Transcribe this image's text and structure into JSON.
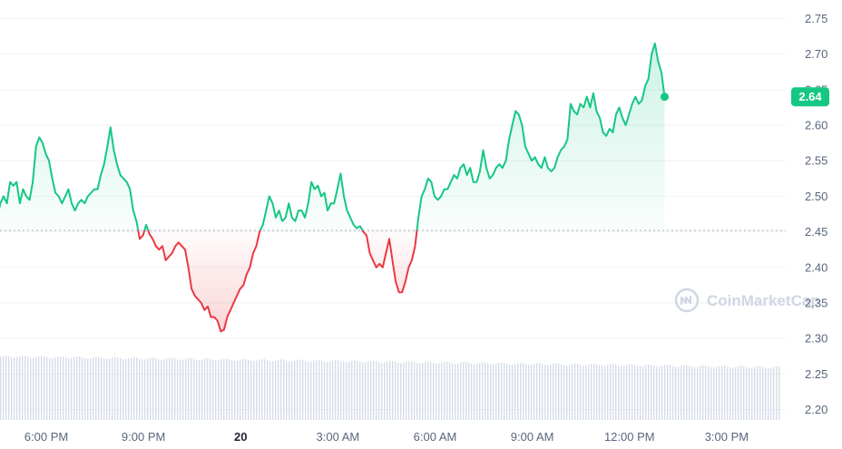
{
  "watermark": "CoinMarketCap",
  "current_price_label": "2.64",
  "colors": {
    "up": "#16c784",
    "down": "#ea3943",
    "grid": "#eff2f5",
    "baseline": "#a1a7bb",
    "volume": "#cfd6e4"
  },
  "chart_data": {
    "type": "line",
    "baseline": 2.452,
    "ylim": [
      2.18,
      2.77
    ],
    "y_ticks": [
      2.75,
      2.7,
      2.65,
      2.6,
      2.55,
      2.5,
      2.45,
      2.4,
      2.35,
      2.3,
      2.25,
      2.2
    ],
    "y_tick_labels": [
      "2.75",
      "2.70",
      "2.65",
      "2.60",
      "2.55",
      "2.50",
      "2.45",
      "2.40",
      "2.35",
      "2.30",
      "2.25",
      "2.20"
    ],
    "x_range_hours": [
      -1,
      22.5
    ],
    "x_ticks": [
      {
        "label": "6:00 PM",
        "hour": 0,
        "bold": false
      },
      {
        "label": "9:00 PM",
        "hour": 3,
        "bold": false
      },
      {
        "label": "20",
        "hour": 6,
        "bold": true
      },
      {
        "label": "3:00 AM",
        "hour": 9,
        "bold": false
      },
      {
        "label": "6:00 AM",
        "hour": 12,
        "bold": false
      },
      {
        "label": "9:00 AM",
        "hour": 15,
        "bold": false
      },
      {
        "label": "12:00 PM",
        "hour": 18,
        "bold": false
      },
      {
        "label": "3:00 PM",
        "hour": 21,
        "bold": false
      }
    ],
    "price_points": [
      [
        -1.0,
        2.452
      ],
      [
        -0.9,
        2.47
      ],
      [
        -0.8,
        2.49
      ],
      [
        -0.7,
        2.5
      ],
      [
        -0.6,
        2.49
      ],
      [
        -0.5,
        2.52
      ],
      [
        -0.4,
        2.515
      ],
      [
        -0.3,
        2.52
      ],
      [
        -0.2,
        2.49
      ],
      [
        -0.1,
        2.51
      ],
      [
        0.0,
        2.5
      ],
      [
        0.1,
        2.495
      ],
      [
        0.2,
        2.52
      ],
      [
        0.3,
        2.57
      ],
      [
        0.4,
        2.583
      ],
      [
        0.5,
        2.575
      ],
      [
        0.6,
        2.56
      ],
      [
        0.7,
        2.55
      ],
      [
        0.8,
        2.525
      ],
      [
        0.9,
        2.505
      ],
      [
        1.0,
        2.5
      ],
      [
        1.1,
        2.49
      ],
      [
        1.2,
        2.5
      ],
      [
        1.3,
        2.51
      ],
      [
        1.4,
        2.49
      ],
      [
        1.5,
        2.48
      ],
      [
        1.6,
        2.49
      ],
      [
        1.7,
        2.495
      ],
      [
        1.8,
        2.49
      ],
      [
        1.9,
        2.5
      ],
      [
        2.0,
        2.505
      ],
      [
        2.1,
        2.51
      ],
      [
        2.2,
        2.51
      ],
      [
        2.3,
        2.53
      ],
      [
        2.4,
        2.545
      ],
      [
        2.5,
        2.57
      ],
      [
        2.6,
        2.597
      ],
      [
        2.7,
        2.565
      ],
      [
        2.8,
        2.545
      ],
      [
        2.9,
        2.53
      ],
      [
        3.0,
        2.525
      ],
      [
        3.1,
        2.52
      ],
      [
        3.2,
        2.51
      ],
      [
        3.3,
        2.48
      ],
      [
        3.4,
        2.465
      ],
      [
        3.5,
        2.44
      ],
      [
        3.6,
        2.445
      ],
      [
        3.7,
        2.46
      ],
      [
        3.8,
        2.447
      ],
      [
        3.9,
        2.44
      ],
      [
        4.0,
        2.43
      ],
      [
        4.1,
        2.425
      ],
      [
        4.2,
        2.43
      ],
      [
        4.3,
        2.41
      ],
      [
        4.4,
        2.415
      ],
      [
        4.5,
        2.42
      ],
      [
        4.6,
        2.43
      ],
      [
        4.7,
        2.435
      ],
      [
        4.8,
        2.43
      ],
      [
        4.9,
        2.425
      ],
      [
        5.0,
        2.4
      ],
      [
        5.1,
        2.37
      ],
      [
        5.2,
        2.36
      ],
      [
        5.3,
        2.355
      ],
      [
        5.4,
        2.35
      ],
      [
        5.5,
        2.34
      ],
      [
        5.6,
        2.345
      ],
      [
        5.7,
        2.33
      ],
      [
        5.8,
        2.33
      ],
      [
        5.9,
        2.325
      ],
      [
        6.0,
        2.31
      ],
      [
        6.1,
        2.312
      ],
      [
        6.2,
        2.33
      ],
      [
        6.3,
        2.34
      ],
      [
        6.4,
        2.35
      ],
      [
        6.5,
        2.36
      ],
      [
        6.6,
        2.37
      ],
      [
        6.7,
        2.375
      ],
      [
        6.8,
        2.39
      ],
      [
        6.9,
        2.4
      ],
      [
        7.0,
        2.42
      ],
      [
        7.1,
        2.43
      ],
      [
        7.2,
        2.45
      ],
      [
        7.3,
        2.46
      ],
      [
        7.4,
        2.48
      ],
      [
        7.5,
        2.5
      ],
      [
        7.6,
        2.49
      ],
      [
        7.7,
        2.47
      ],
      [
        7.8,
        2.48
      ],
      [
        7.9,
        2.465
      ],
      [
        8.0,
        2.47
      ],
      [
        8.1,
        2.49
      ],
      [
        8.2,
        2.47
      ],
      [
        8.3,
        2.465
      ],
      [
        8.4,
        2.48
      ],
      [
        8.5,
        2.48
      ],
      [
        8.6,
        2.47
      ],
      [
        8.7,
        2.49
      ],
      [
        8.8,
        2.52
      ],
      [
        8.9,
        2.51
      ],
      [
        9.0,
        2.515
      ],
      [
        9.1,
        2.5
      ],
      [
        9.2,
        2.505
      ],
      [
        9.3,
        2.48
      ],
      [
        9.4,
        2.49
      ],
      [
        9.5,
        2.49
      ],
      [
        9.6,
        2.51
      ],
      [
        9.7,
        2.532
      ],
      [
        9.8,
        2.5
      ],
      [
        9.9,
        2.48
      ],
      [
        10.0,
        2.47
      ],
      [
        10.1,
        2.46
      ],
      [
        10.2,
        2.455
      ],
      [
        10.3,
        2.458
      ],
      [
        10.4,
        2.45
      ],
      [
        10.5,
        2.445
      ],
      [
        10.6,
        2.42
      ],
      [
        10.7,
        2.41
      ],
      [
        10.8,
        2.4
      ],
      [
        10.9,
        2.405
      ],
      [
        11.0,
        2.4
      ],
      [
        11.1,
        2.42
      ],
      [
        11.2,
        2.44
      ],
      [
        11.3,
        2.41
      ],
      [
        11.4,
        2.38
      ],
      [
        11.5,
        2.365
      ],
      [
        11.6,
        2.365
      ],
      [
        11.7,
        2.38
      ],
      [
        11.8,
        2.4
      ],
      [
        11.9,
        2.41
      ],
      [
        12.0,
        2.43
      ],
      [
        12.1,
        2.47
      ],
      [
        12.2,
        2.5
      ],
      [
        12.3,
        2.51
      ],
      [
        12.4,
        2.525
      ],
      [
        12.5,
        2.52
      ],
      [
        12.6,
        2.5
      ],
      [
        12.7,
        2.495
      ],
      [
        12.8,
        2.5
      ],
      [
        12.9,
        2.51
      ],
      [
        13.0,
        2.51
      ],
      [
        13.1,
        2.52
      ],
      [
        13.2,
        2.53
      ],
      [
        13.3,
        2.525
      ],
      [
        13.4,
        2.54
      ],
      [
        13.5,
        2.545
      ],
      [
        13.6,
        2.53
      ],
      [
        13.7,
        2.54
      ],
      [
        13.8,
        2.52
      ],
      [
        13.9,
        2.52
      ],
      [
        14.0,
        2.535
      ],
      [
        14.1,
        2.565
      ],
      [
        14.2,
        2.54
      ],
      [
        14.3,
        2.525
      ],
      [
        14.4,
        2.53
      ],
      [
        14.5,
        2.54
      ],
      [
        14.6,
        2.545
      ],
      [
        14.7,
        2.54
      ],
      [
        14.8,
        2.55
      ],
      [
        14.9,
        2.58
      ],
      [
        15.0,
        2.6
      ],
      [
        15.1,
        2.62
      ],
      [
        15.2,
        2.615
      ],
      [
        15.3,
        2.6
      ],
      [
        15.4,
        2.57
      ],
      [
        15.5,
        2.56
      ],
      [
        15.6,
        2.55
      ],
      [
        15.7,
        2.555
      ],
      [
        15.8,
        2.545
      ],
      [
        15.9,
        2.54
      ],
      [
        16.0,
        2.555
      ],
      [
        16.1,
        2.54
      ],
      [
        16.2,
        2.535
      ],
      [
        16.3,
        2.54
      ],
      [
        16.4,
        2.555
      ],
      [
        16.5,
        2.565
      ],
      [
        16.6,
        2.57
      ],
      [
        16.7,
        2.58
      ],
      [
        16.8,
        2.63
      ],
      [
        16.9,
        2.62
      ],
      [
        17.0,
        2.615
      ],
      [
        17.1,
        2.63
      ],
      [
        17.2,
        2.625
      ],
      [
        17.3,
        2.64
      ],
      [
        17.4,
        2.625
      ],
      [
        17.5,
        2.645
      ],
      [
        17.6,
        2.62
      ],
      [
        17.7,
        2.61
      ],
      [
        17.8,
        2.59
      ],
      [
        17.9,
        2.585
      ],
      [
        18.0,
        2.595
      ],
      [
        18.1,
        2.59
      ],
      [
        18.2,
        2.615
      ],
      [
        18.3,
        2.625
      ],
      [
        18.4,
        2.61
      ],
      [
        18.5,
        2.6
      ],
      [
        18.6,
        2.615
      ],
      [
        18.7,
        2.63
      ],
      [
        18.8,
        2.64
      ],
      [
        18.9,
        2.63
      ],
      [
        19.0,
        2.635
      ],
      [
        19.1,
        2.655
      ],
      [
        19.2,
        2.665
      ],
      [
        19.3,
        2.7
      ],
      [
        19.4,
        2.715
      ],
      [
        19.5,
        2.69
      ],
      [
        19.6,
        2.675
      ],
      [
        19.7,
        2.64
      ]
    ]
  }
}
